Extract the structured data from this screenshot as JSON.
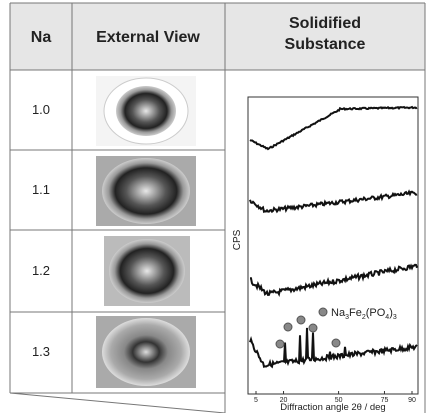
{
  "header": {
    "na": "Na",
    "external_view": "External View",
    "solidified_substance": [
      "Solidified",
      "Substance"
    ]
  },
  "rows": [
    {
      "na": "1.0"
    },
    {
      "na": "1.1"
    },
    {
      "na": "1.2"
    },
    {
      "na": "1.3"
    }
  ],
  "chart": {
    "y_label": "CPS",
    "x_label": "Diffraction angle 2θ / deg",
    "annotation": [
      "Na",
      "3",
      "Fe",
      "2",
      "(PO",
      "4",
      ")",
      "3"
    ],
    "xlim": [
      5,
      90
    ],
    "xticks": [
      5,
      20,
      50,
      75,
      90
    ]
  }
}
